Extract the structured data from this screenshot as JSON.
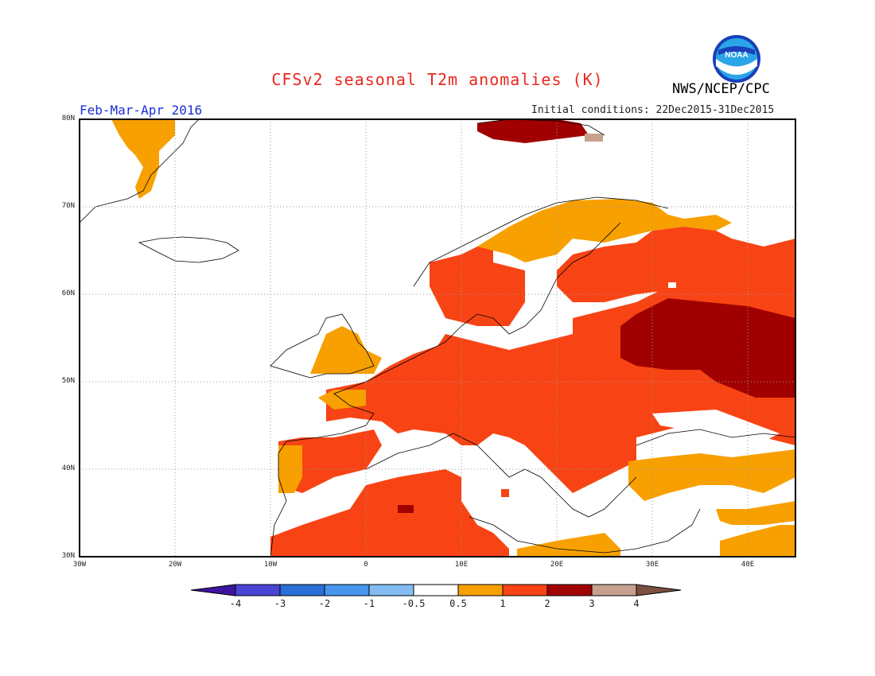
{
  "header": {
    "title": "CFSv2 seasonal T2m anomalies (K)",
    "agency": "NWS/NCEP/CPC",
    "logo_text": "NOAA",
    "period": "Feb-Mar-Apr 2016",
    "initial_conditions": "Initial conditions: 22Dec2015-31Dec2015"
  },
  "axes": {
    "lat_labels": [
      "80N",
      "70N",
      "60N",
      "50N",
      "40N",
      "30N"
    ],
    "lon_labels": [
      "30W",
      "20W",
      "10W",
      "0",
      "10E",
      "20E",
      "30E",
      "40E"
    ]
  },
  "legend": {
    "colors": [
      "#3c14a0",
      "#4a44d4",
      "#2a6fd8",
      "#4696ee",
      "#82bcf2",
      "#ffffff",
      "#f7a000",
      "#f84414",
      "#a00000",
      "#c8a090",
      "#7a5040"
    ],
    "labels": [
      "-4",
      "-3",
      "-2",
      "-1",
      "-0.5",
      "0.5",
      "1",
      "2",
      "3",
      "4"
    ]
  },
  "colors": {
    "anomaly_0_5_to_1": "#f7a000",
    "anomaly_1_to_2": "#f84414",
    "anomaly_2_to_3": "#a00000",
    "anomaly_3_to_4": "#c8a090",
    "title": "#e8281c",
    "period": "#1b2fd6"
  }
}
